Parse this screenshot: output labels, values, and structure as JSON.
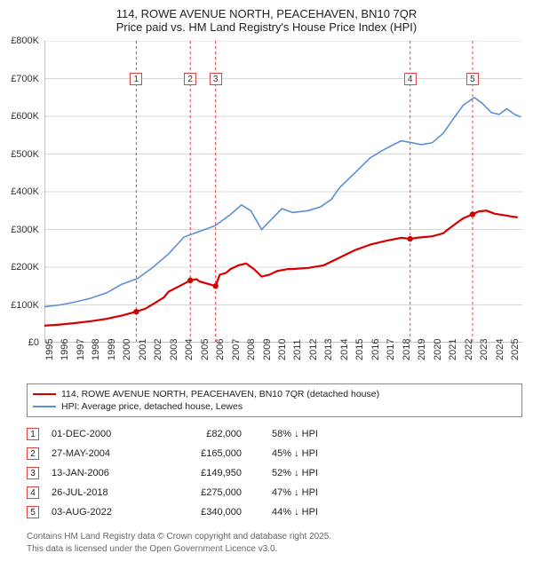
{
  "title_line1": "114, ROWE AVENUE NORTH, PEACEHAVEN, BN10 7QR",
  "title_line2": "Price paid vs. HM Land Registry's House Price Index (HPI)",
  "chart": {
    "type": "line",
    "background_color": "#ffffff",
    "grid_color": "#d8d8d8",
    "marker_line_color": "#e04040",
    "marker_line_dash": "3,3",
    "marker_box_border": "#e04040",
    "marker_box_text": "#333333",
    "axis_color": "#888888",
    "tick_fontsize": 11,
    "title_fontsize": 13,
    "x": {
      "min": 1995,
      "max": 2025.8,
      "ticks": [
        1995,
        1996,
        1997,
        1998,
        1999,
        2000,
        2001,
        2002,
        2003,
        2004,
        2005,
        2006,
        2007,
        2008,
        2009,
        2010,
        2011,
        2012,
        2013,
        2014,
        2015,
        2016,
        2017,
        2018,
        2019,
        2020,
        2021,
        2022,
        2023,
        2024,
        2025
      ]
    },
    "y": {
      "min": 0,
      "max": 800000,
      "ticks": [
        0,
        100000,
        200000,
        300000,
        400000,
        500000,
        600000,
        700000,
        800000
      ],
      "tick_labels": [
        "£0",
        "£100K",
        "£200K",
        "£300K",
        "£400K",
        "£500K",
        "£600K",
        "£700K",
        "£800K"
      ]
    },
    "series": [
      {
        "name": "price_paid",
        "color": "#d40000",
        "stroke_width": 2.2,
        "marker_color": "#d40000",
        "marker_radius": 3.2,
        "data": [
          [
            1995,
            45000
          ],
          [
            1996,
            48000
          ],
          [
            1997,
            52000
          ],
          [
            1998,
            57000
          ],
          [
            1999,
            63000
          ],
          [
            2000,
            72000
          ],
          [
            2000.92,
            82000
          ],
          [
            2001.5,
            90000
          ],
          [
            2002,
            102000
          ],
          [
            2002.7,
            120000
          ],
          [
            2003,
            135000
          ],
          [
            2003.7,
            150000
          ],
          [
            2004.4,
            165000
          ],
          [
            2004.8,
            168000
          ],
          [
            2005,
            162000
          ],
          [
            2005.6,
            155000
          ],
          [
            2006.03,
            149950
          ],
          [
            2006.3,
            180000
          ],
          [
            2006.7,
            185000
          ],
          [
            2007,
            195000
          ],
          [
            2007.5,
            205000
          ],
          [
            2008,
            210000
          ],
          [
            2008.5,
            195000
          ],
          [
            2009,
            175000
          ],
          [
            2009.5,
            180000
          ],
          [
            2010,
            190000
          ],
          [
            2010.7,
            195000
          ],
          [
            2011,
            195000
          ],
          [
            2012,
            198000
          ],
          [
            2013,
            205000
          ],
          [
            2014,
            225000
          ],
          [
            2015,
            245000
          ],
          [
            2016,
            260000
          ],
          [
            2017,
            270000
          ],
          [
            2018,
            278000
          ],
          [
            2018.57,
            275000
          ],
          [
            2019,
            278000
          ],
          [
            2019.5,
            280000
          ],
          [
            2020,
            282000
          ],
          [
            2020.7,
            290000
          ],
          [
            2021,
            300000
          ],
          [
            2021.6,
            318000
          ],
          [
            2022,
            330000
          ],
          [
            2022.59,
            340000
          ],
          [
            2023,
            348000
          ],
          [
            2023.5,
            350000
          ],
          [
            2024,
            342000
          ],
          [
            2024.6,
            338000
          ],
          [
            2025,
            335000
          ],
          [
            2025.5,
            332000
          ]
        ],
        "sale_markers": [
          {
            "x": 2000.92,
            "y": 82000
          },
          {
            "x": 2004.4,
            "y": 165000
          },
          {
            "x": 2006.03,
            "y": 149950
          },
          {
            "x": 2018.57,
            "y": 275000
          },
          {
            "x": 2022.59,
            "y": 340000
          }
        ]
      },
      {
        "name": "hpi",
        "color": "#5b8fd6",
        "stroke_width": 1.6,
        "data": [
          [
            1995,
            95000
          ],
          [
            1996,
            100000
          ],
          [
            1997,
            108000
          ],
          [
            1998,
            118000
          ],
          [
            1999,
            132000
          ],
          [
            2000,
            155000
          ],
          [
            2001,
            170000
          ],
          [
            2002,
            200000
          ],
          [
            2003,
            235000
          ],
          [
            2004,
            280000
          ],
          [
            2005,
            295000
          ],
          [
            2006,
            310000
          ],
          [
            2007,
            340000
          ],
          [
            2007.7,
            365000
          ],
          [
            2008.3,
            350000
          ],
          [
            2009,
            300000
          ],
          [
            2009.7,
            330000
          ],
          [
            2010.3,
            355000
          ],
          [
            2011,
            345000
          ],
          [
            2012,
            350000
          ],
          [
            2012.8,
            360000
          ],
          [
            2013.5,
            380000
          ],
          [
            2014,
            410000
          ],
          [
            2015,
            450000
          ],
          [
            2016,
            490000
          ],
          [
            2016.8,
            510000
          ],
          [
            2017.5,
            525000
          ],
          [
            2018,
            535000
          ],
          [
            2018.7,
            530000
          ],
          [
            2019.3,
            525000
          ],
          [
            2020,
            530000
          ],
          [
            2020.7,
            555000
          ],
          [
            2021.3,
            590000
          ],
          [
            2022,
            630000
          ],
          [
            2022.7,
            650000
          ],
          [
            2023.2,
            635000
          ],
          [
            2023.8,
            610000
          ],
          [
            2024.3,
            605000
          ],
          [
            2024.8,
            620000
          ],
          [
            2025.3,
            605000
          ],
          [
            2025.7,
            598000
          ]
        ]
      }
    ],
    "vertical_markers": [
      {
        "x": 2000.92,
        "label": "1",
        "label_y": 700000
      },
      {
        "x": 2004.4,
        "label": "2",
        "label_y": 700000
      },
      {
        "x": 2006.03,
        "label": "3",
        "label_y": 700000
      },
      {
        "x": 2018.57,
        "label": "4",
        "label_y": 700000
      },
      {
        "x": 2022.59,
        "label": "5",
        "label_y": 700000
      }
    ]
  },
  "legend": {
    "items": [
      {
        "color": "#d40000",
        "label": "114, ROWE AVENUE NORTH, PEACEHAVEN, BN10 7QR (detached house)"
      },
      {
        "color": "#5b8fd6",
        "label": "HPI: Average price, detached house, Lewes"
      }
    ]
  },
  "transactions": [
    {
      "n": "1",
      "date": "01-DEC-2000",
      "price": "£82,000",
      "diff": "58% ↓ HPI"
    },
    {
      "n": "2",
      "date": "27-MAY-2004",
      "price": "£165,000",
      "diff": "45% ↓ HPI"
    },
    {
      "n": "3",
      "date": "13-JAN-2006",
      "price": "£149,950",
      "diff": "52% ↓ HPI"
    },
    {
      "n": "4",
      "date": "26-JUL-2018",
      "price": "£275,000",
      "diff": "47% ↓ HPI"
    },
    {
      "n": "5",
      "date": "03-AUG-2022",
      "price": "£340,000",
      "diff": "44% ↓ HPI"
    }
  ],
  "txn_badge_border": "#e04040",
  "footer_line1": "Contains HM Land Registry data © Crown copyright and database right 2025.",
  "footer_line2": "This data is licensed under the Open Government Licence v3.0."
}
